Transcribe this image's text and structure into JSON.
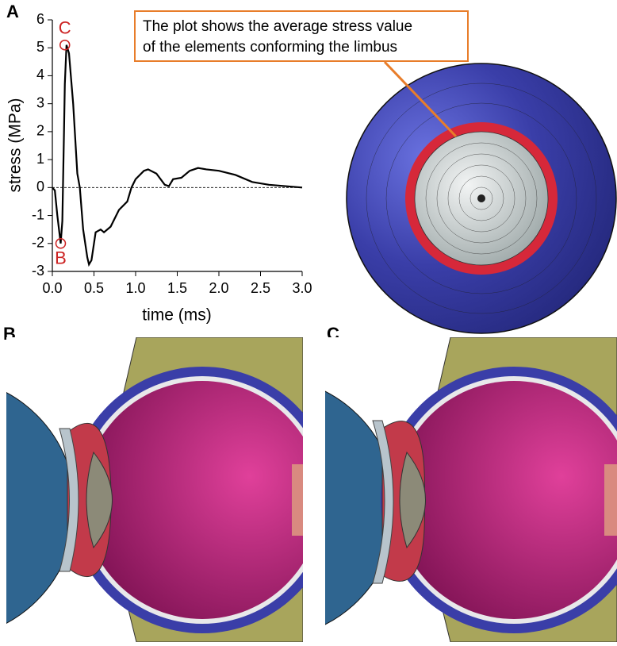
{
  "chart_data": {
    "type": "line",
    "panel_labels": [
      "A",
      "B",
      "C"
    ],
    "xlabel": "time (ms)",
    "ylabel": "stress (MPa)",
    "callout": [
      "The plot shows the average stress value",
      "of the elements conforming the limbus"
    ],
    "x": [
      0,
      0.03,
      0.06,
      0.1,
      0.12,
      0.14,
      0.15,
      0.17,
      0.2,
      0.25,
      0.3,
      0.33,
      0.37,
      0.42,
      0.44,
      0.47,
      0.52,
      0.58,
      0.62,
      0.7,
      0.8,
      0.9,
      0.95,
      1.0,
      1.1,
      1.15,
      1.25,
      1.35,
      1.4,
      1.45,
      1.55,
      1.65,
      1.75,
      1.85,
      2.0,
      2.2,
      2.4,
      2.6,
      2.8,
      3.0
    ],
    "series": [
      {
        "color": "#000000",
        "values": [
          0,
          -0.1,
          -1.0,
          -2.0,
          -1.2,
          2.0,
          3.7,
          5.1,
          4.8,
          3.0,
          0.5,
          0,
          -1.5,
          -2.5,
          -2.75,
          -2.6,
          -1.6,
          -1.5,
          -1.6,
          -1.4,
          -0.8,
          -0.5,
          0,
          0.3,
          0.6,
          0.65,
          0.5,
          0.1,
          0.05,
          0.3,
          0.35,
          0.6,
          0.7,
          0.65,
          0.6,
          0.45,
          0.2,
          0.1,
          0.05,
          0
        ]
      }
    ],
    "annotations": [
      {
        "label": "C",
        "x": 0.15,
        "y": 5.1
      },
      {
        "label": "B",
        "x": 0.1,
        "y": -2.0
      }
    ],
    "annotation_color": "#cc2222",
    "reference_line": 0,
    "xlim": [
      0,
      3.0
    ],
    "xticks": [
      {
        "value": 0,
        "label": "0.0"
      },
      {
        "value": 0.5,
        "label": "0.5"
      },
      {
        "value": 1,
        "label": "1.0"
      },
      {
        "value": 1.5,
        "label": "1.5"
      },
      {
        "value": 2,
        "label": "2.0"
      },
      {
        "value": 2.5,
        "label": "2.5"
      },
      {
        "value": 3,
        "label": "3.0"
      }
    ],
    "ylim": [
      -3,
      6
    ],
    "yticks": [
      -3,
      -2,
      -1,
      0,
      1,
      2,
      3,
      4,
      5,
      6
    ]
  }
}
